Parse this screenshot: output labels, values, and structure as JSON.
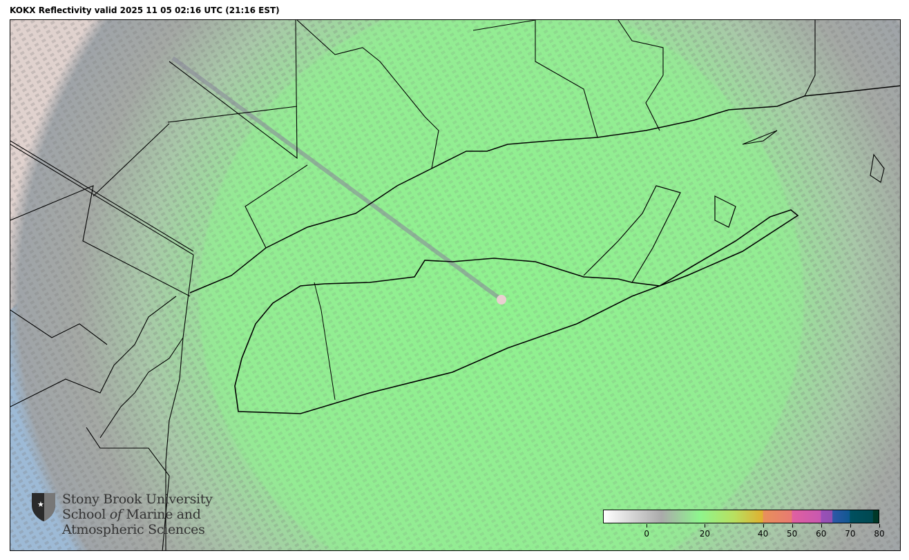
{
  "title": "KOKX Reflectivity valid 2025 11 05 02:16 UTC (21:16 EST)",
  "radar_site": "KOKX",
  "product": "Reflectivity",
  "valid_time_utc": "2025 11 05 02:16 UTC",
  "valid_time_local": "21:16 EST",
  "logo": {
    "line1": "Stony Brook University",
    "line2_a": "School ",
    "line2_b": "of",
    "line2_c": " Marine and",
    "line3": "Atmospheric Sciences",
    "icon": "shield-star-icon"
  },
  "colorbar": {
    "range": [
      -15,
      80
    ],
    "ticks": [
      "0",
      "20",
      "40",
      "50",
      "60",
      "70",
      "80"
    ],
    "tick_values": [
      0,
      20,
      40,
      50,
      60,
      70,
      80
    ],
    "stops": [
      {
        "v": -15,
        "c": "#ffffff"
      },
      {
        "v": 5,
        "c": "#aaaaaa"
      },
      {
        "v": 18,
        "c": "#8ef58e"
      },
      {
        "v": 30,
        "c": "#b8e060"
      },
      {
        "v": 40,
        "c": "#e0b030"
      },
      {
        "v": 40.1,
        "c": "#e8905a"
      },
      {
        "v": 50,
        "c": "#e87a72"
      },
      {
        "v": 50.1,
        "c": "#e060a0"
      },
      {
        "v": 60,
        "c": "#c858b0"
      },
      {
        "v": 60.1,
        "c": "#9a50b8"
      },
      {
        "v": 64,
        "c": "#9050b0"
      },
      {
        "v": 64.1,
        "c": "#2e58a8"
      },
      {
        "v": 70,
        "c": "#105890"
      },
      {
        "v": 70.1,
        "c": "#005060"
      },
      {
        "v": 78,
        "c": "#004850"
      },
      {
        "v": 78.1,
        "c": "#003828"
      },
      {
        "v": 80,
        "c": "#003828"
      }
    ]
  },
  "colors": {
    "ocean": "#9dbad6",
    "echo_green": "#8ef58e",
    "clutter_gray": "#a8a8a8",
    "terrain": "#e6d8d4"
  }
}
